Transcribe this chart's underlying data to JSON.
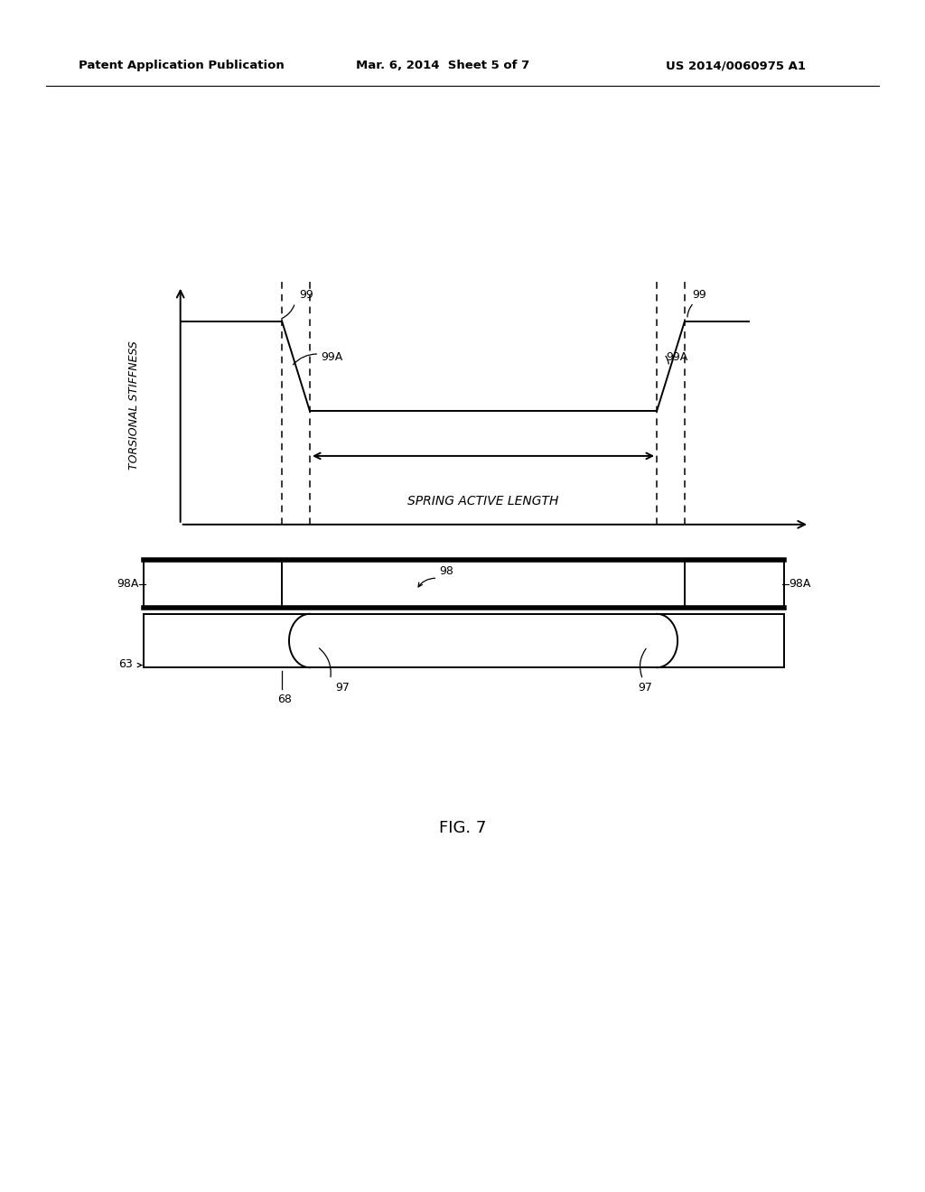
{
  "bg_color": "#ffffff",
  "header_left": "Patent Application Publication",
  "header_mid": "Mar. 6, 2014  Sheet 5 of 7",
  "header_right": "US 2014/0060975 A1",
  "fig_label": "FIG. 7",
  "labels": {
    "99_left": "99",
    "99A_left": "99A",
    "99_right": "99",
    "99A_right": "99A",
    "98": "98",
    "98A_left": "98A",
    "98A_right": "98A",
    "97_left": "97",
    "97_right": "97",
    "63": "63",
    "68": "68",
    "spring_active_length": "SPRING ACTIVE LENGTH",
    "torsional_stiffness": "TORSIONAL STIFFNESS"
  }
}
